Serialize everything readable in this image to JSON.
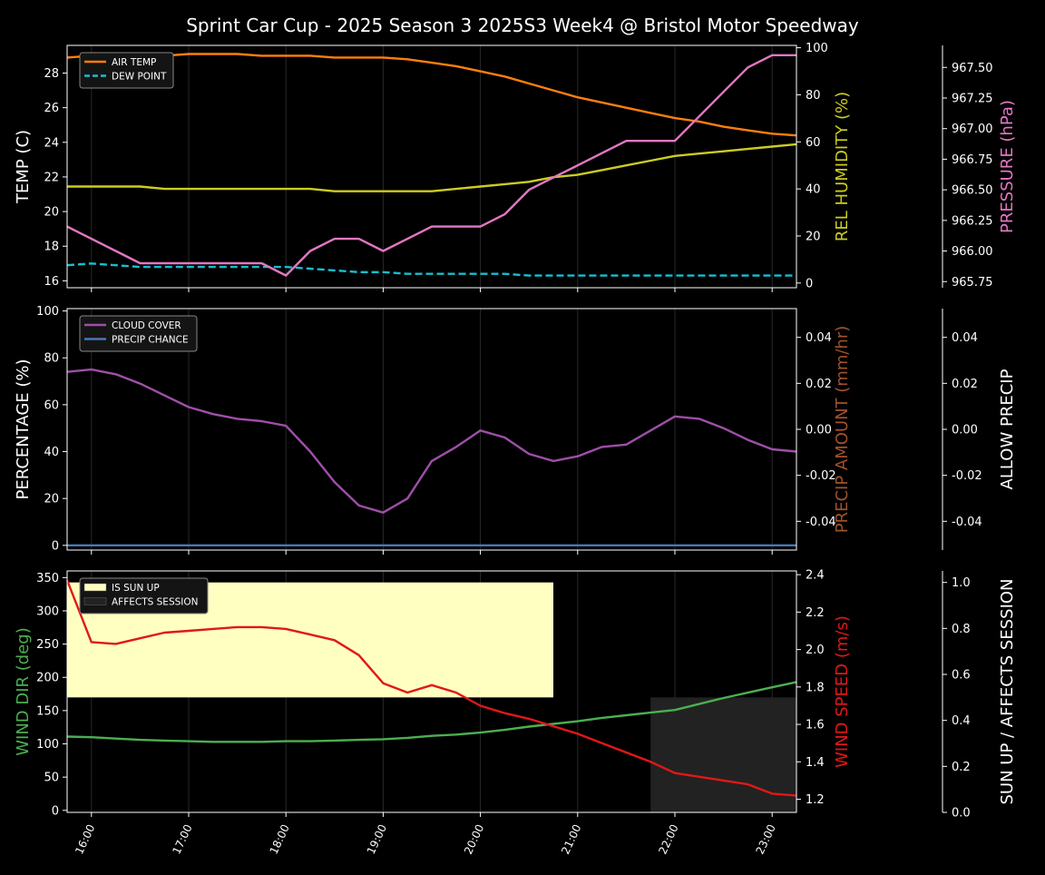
{
  "title": "Sprint Car Cup - 2025 Season 3 2025S3 Week4 @ Bristol Motor Speedway",
  "x_tick_labels": [
    "16:00",
    "17:00",
    "18:00",
    "19:00",
    "20:00",
    "21:00",
    "22:00",
    "23:00"
  ],
  "chart_data": [
    {
      "type": "line",
      "panel": "temperature / humidity / pressure",
      "x": [
        15.75,
        16,
        16.25,
        16.5,
        16.75,
        17,
        17.25,
        17.5,
        17.75,
        18,
        18.25,
        18.5,
        18.75,
        19,
        19.25,
        19.5,
        19.75,
        20,
        20.25,
        20.5,
        20.75,
        21,
        21.25,
        21.5,
        21.75,
        22,
        22.25,
        22.5,
        22.75,
        23,
        23.25
      ],
      "xlim": [
        15.75,
        23.25
      ],
      "grid": "vertical",
      "legend": "top-left",
      "left_axis": {
        "label": "TEMP (C)",
        "ylim": [
          15.6,
          29.6
        ],
        "ticks": [
          "16",
          "18",
          "20",
          "22",
          "24",
          "26",
          "28"
        ]
      },
      "right_axis_1": {
        "label": "REL HUMIDITY (%)",
        "ylim": [
          -2,
          101
        ],
        "ticks": [
          "0",
          "20",
          "40",
          "60",
          "80",
          "100"
        ],
        "color": "#cccc22"
      },
      "right_axis_2": {
        "label": "PRESSURE (hPa)",
        "ylim": [
          965.7,
          967.68
        ],
        "ticks": [
          "965.75",
          "966.00",
          "966.25",
          "966.50",
          "966.75",
          "967.00",
          "967.25",
          "967.50"
        ],
        "color": "#e377c2"
      },
      "series": [
        {
          "name": "AIR TEMP",
          "axis": "left",
          "color": "#ff7f0e",
          "dash": false,
          "values": [
            28.9,
            29.0,
            29.0,
            29.0,
            29.0,
            29.1,
            29.1,
            29.1,
            29.0,
            29.0,
            29.0,
            28.9,
            28.9,
            28.9,
            28.8,
            28.6,
            28.4,
            28.1,
            27.8,
            27.4,
            27.0,
            26.6,
            26.3,
            26.0,
            25.7,
            25.4,
            25.2,
            24.9,
            24.7,
            24.5,
            24.4
          ]
        },
        {
          "name": "DEW POINT",
          "axis": "left",
          "color": "#17becf",
          "dash": true,
          "values": [
            16.9,
            17.0,
            16.9,
            16.8,
            16.8,
            16.8,
            16.8,
            16.8,
            16.8,
            16.8,
            16.7,
            16.6,
            16.5,
            16.5,
            16.4,
            16.4,
            16.4,
            16.4,
            16.4,
            16.3,
            16.3,
            16.3,
            16.3,
            16.3,
            16.3,
            16.3,
            16.3,
            16.3,
            16.3,
            16.3,
            16.3
          ]
        },
        {
          "axis": "right_1",
          "color": "#cccc22",
          "dash": false,
          "values": [
            41,
            41,
            41,
            41,
            40,
            40,
            40,
            40,
            40,
            40,
            40,
            39,
            39,
            39,
            39,
            39,
            40,
            41,
            42,
            43,
            45,
            46,
            48,
            50,
            52,
            54,
            55,
            56,
            57,
            58,
            59
          ]
        },
        {
          "axis": "right_2",
          "color": "#e377c2",
          "dash": false,
          "values": [
            966.2,
            966.1,
            966.0,
            965.9,
            965.9,
            965.9,
            965.9,
            965.9,
            965.9,
            965.8,
            966.0,
            966.1,
            966.1,
            966.0,
            966.1,
            966.2,
            966.2,
            966.2,
            966.3,
            966.5,
            966.6,
            966.7,
            966.8,
            966.9,
            966.9,
            966.9,
            967.1,
            967.3,
            967.5,
            967.6,
            967.6
          ]
        }
      ]
    },
    {
      "type": "line",
      "panel": "cloud cover / precip",
      "x": [
        15.75,
        16,
        16.25,
        16.5,
        16.75,
        17,
        17.25,
        17.5,
        17.75,
        18,
        18.25,
        18.5,
        18.75,
        19,
        19.25,
        19.5,
        19.75,
        20,
        20.25,
        20.5,
        20.75,
        21,
        21.25,
        21.5,
        21.75,
        22,
        22.25,
        22.5,
        22.75,
        23,
        23.25
      ],
      "xlim": [
        15.75,
        23.25
      ],
      "grid": "vertical",
      "legend": "top-left",
      "left_axis": {
        "label": "PERCENTAGE (%)",
        "ylim": [
          -2,
          101
        ],
        "ticks": [
          "0",
          "20",
          "40",
          "60",
          "80",
          "100"
        ]
      },
      "right_axis_1": {
        "label": "PRECIP AMOUNT (mm/hr)",
        "ylim": [
          -0.0525,
          0.0525
        ],
        "ticks": [
          "-0.04",
          "-0.02",
          "0.00",
          "0.02",
          "0.04"
        ],
        "color": "#a0522d"
      },
      "right_axis_2": {
        "label": "ALLOW PRECIP",
        "ylim": [
          -0.0525,
          0.0525
        ],
        "ticks": [
          "-0.04",
          "-0.02",
          "0.00",
          "0.02",
          "0.04"
        ],
        "color": "#ffffff"
      },
      "series": [
        {
          "name": "CLOUD COVER",
          "axis": "left",
          "color": "#9e4fa8",
          "values": [
            74,
            75,
            73,
            69,
            64,
            59,
            56,
            54,
            53,
            51,
            40,
            27,
            17,
            14,
            20,
            36,
            42,
            49,
            46,
            39,
            36,
            38,
            42,
            43,
            49,
            55,
            54,
            50,
            45,
            41,
            40
          ]
        },
        {
          "name": "PRECIP CHANCE",
          "axis": "left",
          "color": "#4a77b4",
          "values": [
            0,
            0,
            0,
            0,
            0,
            0,
            0,
            0,
            0,
            0,
            0,
            0,
            0,
            0,
            0,
            0,
            0,
            0,
            0,
            0,
            0,
            0,
            0,
            0,
            0,
            0,
            0,
            0,
            0,
            0,
            0
          ]
        }
      ]
    },
    {
      "type": "line",
      "panel": "wind / sun",
      "x": [
        15.75,
        16,
        16.25,
        16.5,
        16.75,
        17,
        17.25,
        17.5,
        17.75,
        18,
        18.25,
        18.5,
        18.75,
        19,
        19.25,
        19.5,
        19.75,
        20,
        20.25,
        20.5,
        20.75,
        21,
        21.25,
        21.5,
        21.75,
        22,
        22.25,
        22.5,
        22.75,
        23,
        23.25
      ],
      "xlim": [
        15.75,
        23.25
      ],
      "grid": "vertical",
      "legend": "top-left",
      "left_axis": {
        "label": "WIND DIR (deg)",
        "ylim": [
          -3,
          360
        ],
        "ticks": [
          "0",
          "50",
          "100",
          "150",
          "200",
          "250",
          "300",
          "350"
        ],
        "color": "#4caf50"
      },
      "right_axis_1": {
        "label": "WIND SPEED (m/s)",
        "ylim": [
          1.13,
          2.42
        ],
        "ticks": [
          "1.2",
          "1.4",
          "1.6",
          "1.8",
          "2.0",
          "2.2",
          "2.4"
        ],
        "color": "#e01818"
      },
      "right_axis_2": {
        "label": "SUN UP / AFFECTS SESSION",
        "ylim": [
          0,
          1.05
        ],
        "ticks": [
          "0.0",
          "0.2",
          "0.4",
          "0.6",
          "0.8",
          "1.0"
        ],
        "color": "#ffffff"
      },
      "bands": [
        {
          "name": "IS SUN UP",
          "color": "#ffffc2",
          "x0": 15.75,
          "x1": 20.75,
          "y0": 0.5,
          "y1": 1.0
        },
        {
          "name": "AFFECTS SESSION",
          "color": "#222222",
          "x0": 21.75,
          "x1": 23.25,
          "y0": 0,
          "y1": 0.5
        }
      ],
      "series": [
        {
          "axis": "left",
          "color": "#4caf50",
          "values": [
            111,
            110,
            108,
            106,
            105,
            104,
            103,
            103,
            103,
            104,
            104,
            105,
            106,
            107,
            109,
            112,
            114,
            117,
            121,
            126,
            130,
            134,
            139,
            143,
            147,
            151,
            160,
            169,
            177,
            185,
            193
          ]
        },
        {
          "axis": "right_1",
          "color": "#e01818",
          "values": [
            2.37,
            2.04,
            2.03,
            2.06,
            2.09,
            2.1,
            2.11,
            2.12,
            2.12,
            2.11,
            2.08,
            2.05,
            1.97,
            1.82,
            1.77,
            1.81,
            1.77,
            1.7,
            1.66,
            1.63,
            1.59,
            1.55,
            1.5,
            1.45,
            1.4,
            1.34,
            1.32,
            1.3,
            1.28,
            1.23,
            1.22
          ]
        }
      ]
    }
  ]
}
